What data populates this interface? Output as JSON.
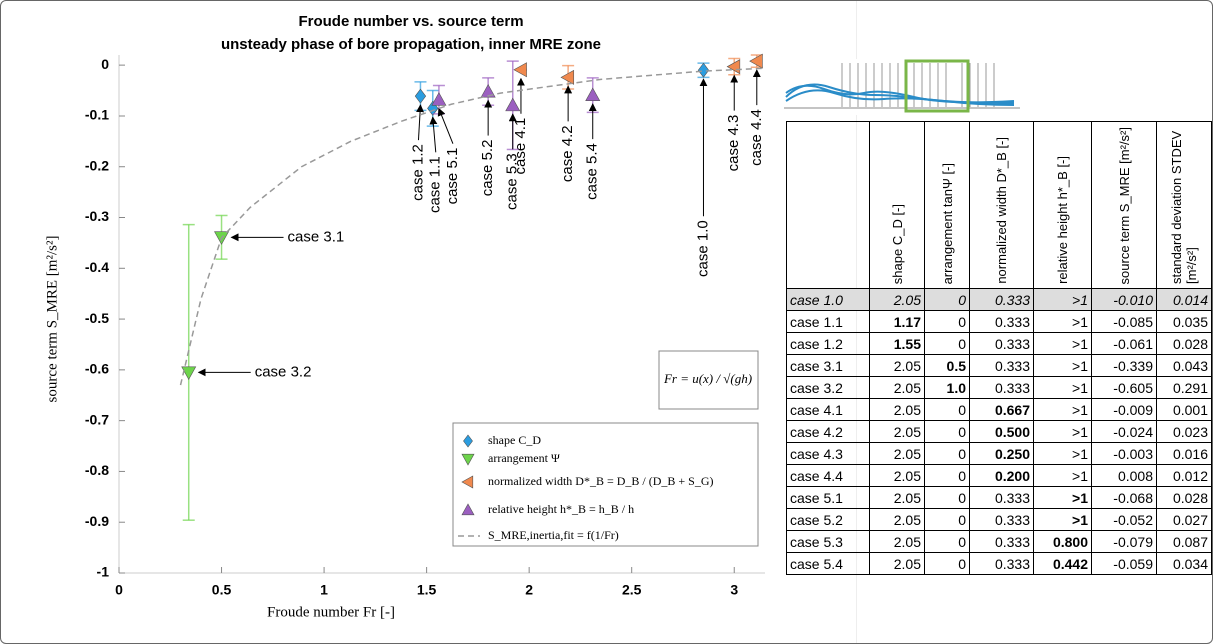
{
  "chart_data": {
    "type": "scatter",
    "title": "Froude number vs. source term",
    "subtitle": "unsteady phase of bore propagation, inner MRE zone",
    "xlabel": "Froude number Fr [-]",
    "ylabel": "source term S_MRE [m²/s²]",
    "xlim": [
      0,
      3.15
    ],
    "ylim": [
      -1,
      0.02
    ],
    "xticks": [
      0,
      0.5,
      1,
      1.5,
      2,
      2.5,
      3
    ],
    "yticks": [
      0,
      -0.1,
      -0.2,
      -0.3,
      -0.4,
      -0.5,
      -0.6,
      -0.7,
      -0.8,
      -0.9,
      -1
    ],
    "legend": "lower right",
    "annotation": "Fr = u(x) / √(gh)",
    "series": [
      {
        "name": "shape C_D",
        "color": "#2b9de0",
        "marker": "diamond",
        "x": [
          2.85,
          1.53,
          1.47
        ],
        "values": [
          -0.01,
          -0.085,
          -0.061
        ],
        "errors": [
          0.014,
          0.035,
          0.028
        ],
        "labels": [
          "case 1.0",
          "case 1.1",
          "case 1.2"
        ]
      },
      {
        "name": "arrangement Ψ",
        "color": "#6dd44b",
        "marker": "triangle-down",
        "x": [
          0.5,
          0.34
        ],
        "values": [
          -0.339,
          -0.605
        ],
        "errors": [
          0.043,
          0.291
        ],
        "labels": [
          "case 3.1",
          "case 3.2"
        ]
      },
      {
        "name": "normalized width D*_B = D_B / (D_B + S_G)",
        "color": "#f0894e",
        "marker": "triangle-left",
        "x": [
          1.96,
          2.19,
          3,
          3.11
        ],
        "values": [
          -0.009,
          -0.024,
          -0.003,
          0.008
        ],
        "errors": [
          0.001,
          0.023,
          0.016,
          0.012
        ],
        "labels": [
          "case 4.1",
          "case 4.2",
          "case 4.3",
          "case 4.4"
        ]
      },
      {
        "name": "relative height h*_B = h_B / h",
        "color": "#9b5fc0",
        "marker": "triangle-up",
        "x": [
          1.56,
          1.8,
          1.92,
          2.31
        ],
        "values": [
          -0.068,
          -0.052,
          -0.079,
          -0.059
        ],
        "errors": [
          0.028,
          0.027,
          0.087,
          0.034
        ],
        "labels": [
          "case 5.1",
          "case 5.2",
          "case 5.3",
          "case 5.4"
        ]
      },
      {
        "name": "S_MRE,inertia,fit = f(1/Fr)",
        "color": "#999999",
        "marker": "none",
        "dashed": true,
        "x": [
          0.3,
          0.4,
          0.5,
          0.64,
          0.89,
          1.13,
          1.38,
          1.62,
          1.86,
          2.35,
          2.84,
          3.15
        ],
        "values": [
          -0.63,
          -0.46,
          -0.34,
          -0.28,
          -0.2,
          -0.15,
          -0.11,
          -0.077,
          -0.055,
          -0.028,
          -0.012,
          -0.006
        ]
      }
    ]
  },
  "table": {
    "header": [
      "shape C_D [-]",
      "arrangement tanΨ [-]",
      "normalized width D*_B [-]",
      "relative height h*_B [-]",
      "source term S_MRE [m²/s²]",
      "standard deviation STDEV [m²/s²]"
    ],
    "rows": [
      [
        "case 1.0",
        "2.05",
        "0",
        "0.333",
        ">1",
        "-0.010",
        "0.014"
      ],
      [
        "case 1.1",
        "1.17",
        "0",
        "0.333",
        ">1",
        "-0.085",
        "0.035"
      ],
      [
        "case 1.2",
        "1.55",
        "0",
        "0.333",
        ">1",
        "-0.061",
        "0.028"
      ],
      [
        "case 3.1",
        "2.05",
        "0.5",
        "0.333",
        ">1",
        "-0.339",
        "0.043"
      ],
      [
        "case 3.2",
        "2.05",
        "1.0",
        "0.333",
        ">1",
        "-0.605",
        "0.291"
      ],
      [
        "case 4.1",
        "2.05",
        "0",
        "0.667",
        ">1",
        "-0.009",
        "0.001"
      ],
      [
        "case 4.2",
        "2.05",
        "0",
        "0.500",
        ">1",
        "-0.024",
        "0.023"
      ],
      [
        "case 4.3",
        "2.05",
        "0",
        "0.250",
        ">1",
        "-0.003",
        "0.016"
      ],
      [
        "case 4.4",
        "2.05",
        "0",
        "0.200",
        ">1",
        "0.008",
        "0.012"
      ],
      [
        "case 5.1",
        "2.05",
        "0",
        "0.333",
        ">1",
        "-0.068",
        "0.028"
      ],
      [
        "case 5.2",
        "2.05",
        "0",
        "0.333",
        ">1",
        "-0.052",
        "0.027"
      ],
      [
        "case 5.3",
        "2.05",
        "0",
        "0.333",
        "0.800",
        "-0.079",
        "0.087"
      ],
      [
        "case 5.4",
        "2.05",
        "0",
        "0.333",
        "0.442",
        "-0.059",
        "0.034"
      ]
    ],
    "emphasis": [
      [
        1,
        1
      ],
      [
        2,
        1
      ],
      [
        3,
        2
      ],
      [
        4,
        2
      ],
      [
        5,
        3
      ],
      [
        6,
        3
      ],
      [
        7,
        3
      ],
      [
        8,
        3
      ],
      [
        9,
        4
      ],
      [
        10,
        4
      ],
      [
        11,
        4
      ],
      [
        12,
        4
      ]
    ],
    "highlight_row": 0
  }
}
